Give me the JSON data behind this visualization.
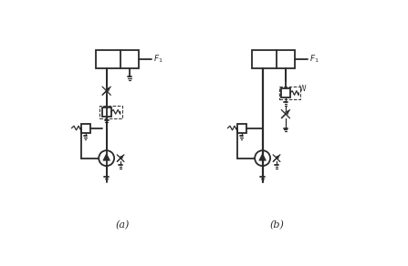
{
  "bg_color": "#ffffff",
  "line_color": "#2a2a2a",
  "label_a": "(a)",
  "label_b": "(b)",
  "figsize": [
    4.47,
    2.92
  ],
  "dpi": 100,
  "lw_main": 1.3,
  "lw_thin": 0.9
}
